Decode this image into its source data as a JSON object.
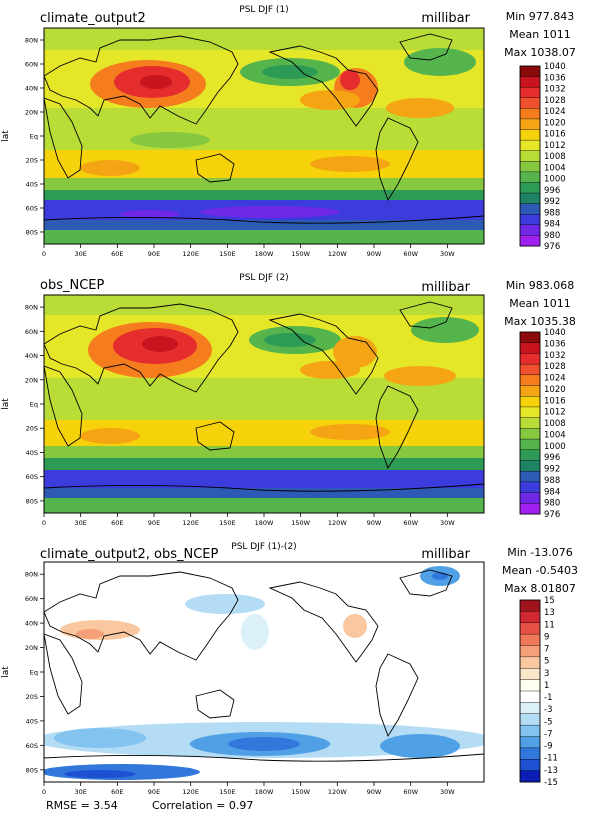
{
  "chart_data": [
    {
      "type": "heatmap",
      "case_label": "climate_output2",
      "title": "PSL DJF (1)",
      "units": "millibar",
      "stats": {
        "min": "Min 977.843",
        "mean": "Mean 1011",
        "max": "Max 1038.07"
      },
      "ylabel": "lat",
      "x_ticks": [
        "0",
        "30E",
        "60E",
        "90E",
        "120E",
        "150E",
        "180W",
        "150W",
        "120W",
        "90W",
        "60W",
        "30W"
      ],
      "y_ticks": [
        "80N",
        "60N",
        "40N",
        "20N",
        "Eq",
        "20S",
        "40S",
        "60S",
        "80S"
      ],
      "xlim": [
        0,
        360
      ],
      "ylim": [
        -90,
        90
      ],
      "colorbar": {
        "levels": [
          "1040",
          "1036",
          "1032",
          "1028",
          "1024",
          "1020",
          "1016",
          "1012",
          "1008",
          "1004",
          "1000",
          "996",
          "992",
          "988",
          "984",
          "980",
          "976"
        ],
        "colors": [
          "#8c0a0a",
          "#c8141e",
          "#e62d2d",
          "#f0502d",
          "#f57d1e",
          "#f5a514",
          "#f5d20a",
          "#e6e628",
          "#b9dc37",
          "#87c841",
          "#55b44b",
          "#2d9b55",
          "#1e8264",
          "#2d5ab4",
          "#3c3cdc",
          "#6e28e6",
          "#a020f0"
        ]
      },
      "features": [
        {
          "lon": 95,
          "lat": 45,
          "value": 1036
        },
        {
          "lon": 245,
          "lat": 40,
          "value": 1030
        },
        {
          "lon": 180,
          "lat": 55,
          "value": 1000
        },
        {
          "lon": 330,
          "lat": 60,
          "value": 1000
        },
        {
          "lon": 180,
          "lat": -62,
          "value": 984
        },
        {
          "lon": 90,
          "lat": -65,
          "value": 978
        }
      ]
    },
    {
      "type": "heatmap",
      "case_label": "obs_NCEP",
      "title": "PSL DJF (2)",
      "units": "millibar",
      "stats": {
        "min": "Min 983.068",
        "mean": "Mean 1011",
        "max": "Max 1035.38"
      },
      "ylabel": "lat",
      "x_ticks": [
        "0",
        "30E",
        "60E",
        "90E",
        "120E",
        "150E",
        "180W",
        "150W",
        "120W",
        "90W",
        "60W",
        "30W"
      ],
      "y_ticks": [
        "80N",
        "60N",
        "40N",
        "20N",
        "Eq",
        "20S",
        "40S",
        "60S",
        "80S"
      ],
      "xlim": [
        0,
        360
      ],
      "ylim": [
        -90,
        90
      ],
      "colorbar": {
        "levels": [
          "1040",
          "1036",
          "1032",
          "1028",
          "1024",
          "1020",
          "1016",
          "1012",
          "1008",
          "1004",
          "1000",
          "996",
          "992",
          "988",
          "984",
          "980",
          "976"
        ],
        "colors": [
          "#8c0a0a",
          "#c8141e",
          "#e62d2d",
          "#f0502d",
          "#f57d1e",
          "#f5a514",
          "#f5d20a",
          "#e6e628",
          "#b9dc37",
          "#87c841",
          "#55b44b",
          "#2d9b55",
          "#1e8264",
          "#2d5ab4",
          "#3c3cdc",
          "#6e28e6",
          "#a020f0"
        ]
      },
      "features": [
        {
          "lon": 100,
          "lat": 45,
          "value": 1034
        },
        {
          "lon": 245,
          "lat": 40,
          "value": 1022
        },
        {
          "lon": 185,
          "lat": 52,
          "value": 1002
        },
        {
          "lon": 335,
          "lat": 62,
          "value": 1002
        },
        {
          "lon": 180,
          "lat": -62,
          "value": 986
        }
      ]
    },
    {
      "type": "heatmap",
      "case_label": "climate_output2, obs_NCEP",
      "title": "PSL DJF (1)-(2)",
      "units": "millibar",
      "stats": {
        "min": "Min -13.076",
        "mean": "Mean -0.5403",
        "max": "Max 8.01807"
      },
      "ylabel": "lat",
      "x_ticks": [
        "0",
        "30E",
        "60E",
        "90E",
        "120E",
        "150E",
        "180W",
        "150W",
        "120W",
        "90W",
        "60W",
        "30W"
      ],
      "y_ticks": [
        "80N",
        "60N",
        "40N",
        "20N",
        "Eq",
        "20S",
        "40S",
        "60S",
        "80S"
      ],
      "xlim": [
        0,
        360
      ],
      "ylim": [
        -90,
        90
      ],
      "footer": {
        "rmse": "RMSE = 3.54",
        "correlation": "Correlation = 0.97"
      },
      "colorbar": {
        "levels": [
          "15",
          "13",
          "11",
          "9",
          "7",
          "5",
          "3",
          "1",
          "-1",
          "-3",
          "-5",
          "-7",
          "-9",
          "-11",
          "-13",
          "-15"
        ],
        "colors": [
          "#a0141e",
          "#d22832",
          "#e65046",
          "#f0785a",
          "#f5a078",
          "#fac8a0",
          "#fae6c8",
          "#fffff0",
          "#ffffff",
          "#dcf0fa",
          "#b4dcf5",
          "#82c3f0",
          "#50a0e6",
          "#3278dc",
          "#1e50d2",
          "#0a1eb4"
        ]
      },
      "features": [
        {
          "lon": 355,
          "lat": 78,
          "value": -9
        },
        {
          "lon": 60,
          "lat": 30,
          "value": 5
        },
        {
          "lon": 235,
          "lat": 35,
          "value": 5
        },
        {
          "lon": 180,
          "lat": -62,
          "value": -11
        },
        {
          "lon": 30,
          "lat": -58,
          "value": -7
        },
        {
          "lon": 310,
          "lat": -60,
          "value": -9
        },
        {
          "lon": 60,
          "lat": -82,
          "value": -13
        }
      ]
    }
  ]
}
